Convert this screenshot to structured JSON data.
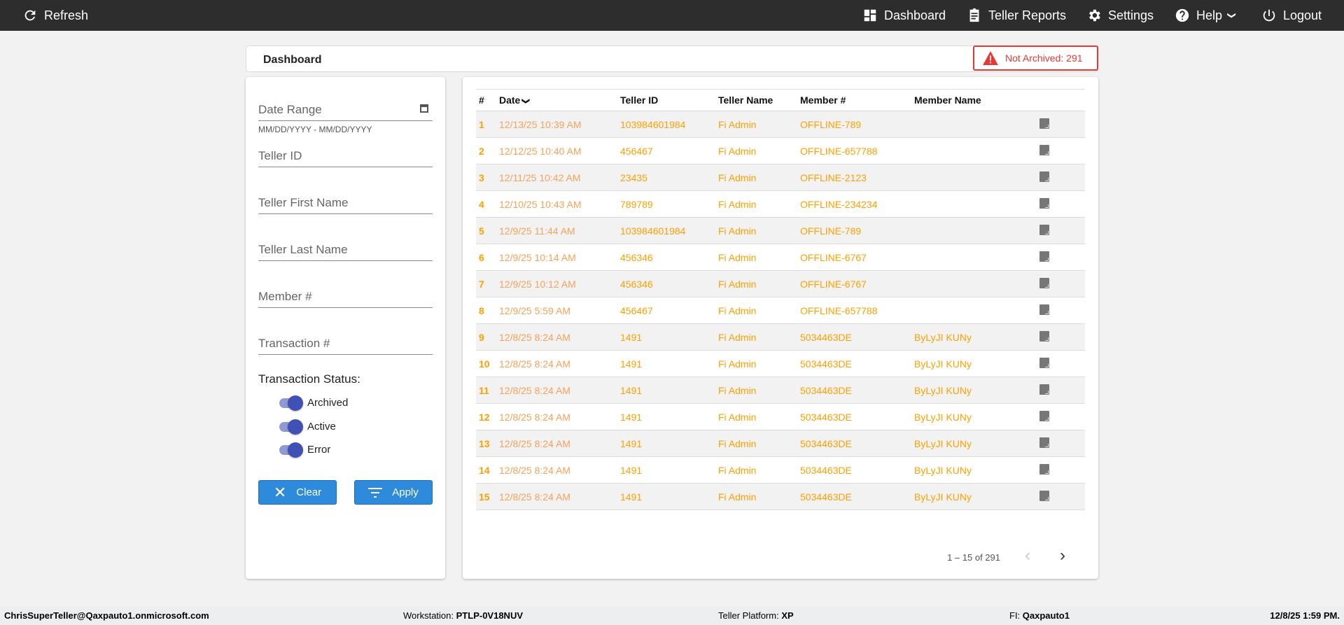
{
  "topbar": {
    "refresh": "Refresh",
    "dashboard": "Dashboard",
    "teller_reports": "Teller Reports",
    "settings": "Settings",
    "help": "Help",
    "logout": "Logout"
  },
  "header": {
    "title": "Dashboard",
    "warning": "Not Archived: 291"
  },
  "filters": {
    "date_range": "Date Range",
    "date_hint": "MM/DD/YYYY - MM/DD/YYYY",
    "teller_id": "Teller ID",
    "teller_first": "Teller First Name",
    "teller_last": "Teller Last Name",
    "member": "Member #",
    "transaction": "Transaction #",
    "status_label": "Transaction Status:",
    "statuses": [
      {
        "label": "Archived",
        "on": true
      },
      {
        "label": "Active",
        "on": true
      },
      {
        "label": "Error",
        "on": true
      }
    ],
    "clear": "Clear",
    "apply": "Apply"
  },
  "table": {
    "columns": [
      "#",
      "Date",
      "Teller ID",
      "Teller Name",
      "Member #",
      "Member Name"
    ],
    "rows": [
      [
        "1",
        "12/13/25 10:39 AM",
        "103984601984",
        "Fi Admin",
        "OFFLINE-789",
        ""
      ],
      [
        "2",
        "12/12/25 10:40 AM",
        "456467",
        "Fi Admin",
        "OFFLINE-657788",
        ""
      ],
      [
        "3",
        "12/11/25 10:42 AM",
        "23435",
        "Fi Admin",
        "OFFLINE-2123",
        ""
      ],
      [
        "4",
        "12/10/25 10:43 AM",
        "789789",
        "Fi Admin",
        "OFFLINE-234234",
        ""
      ],
      [
        "5",
        "12/9/25 11:44 AM",
        "103984601984",
        "Fi Admin",
        "OFFLINE-789",
        ""
      ],
      [
        "6",
        "12/9/25 10:14 AM",
        "456346",
        "Fi Admin",
        "OFFLINE-6767",
        ""
      ],
      [
        "7",
        "12/9/25 10:12 AM",
        "456346",
        "Fi Admin",
        "OFFLINE-6767",
        ""
      ],
      [
        "8",
        "12/9/25 5:59 AM",
        "456467",
        "Fi Admin",
        "OFFLINE-657788",
        ""
      ],
      [
        "9",
        "12/8/25 8:24 AM",
        "1491",
        "Fi Admin",
        "5034463DE",
        "ByLyJI KUNy"
      ],
      [
        "10",
        "12/8/25 8:24 AM",
        "1491",
        "Fi Admin",
        "5034463DE",
        "ByLyJI KUNy"
      ],
      [
        "11",
        "12/8/25 8:24 AM",
        "1491",
        "Fi Admin",
        "5034463DE",
        "ByLyJI KUNy"
      ],
      [
        "12",
        "12/8/25 8:24 AM",
        "1491",
        "Fi Admin",
        "5034463DE",
        "ByLyJI KUNy"
      ],
      [
        "13",
        "12/8/25 8:24 AM",
        "1491",
        "Fi Admin",
        "5034463DE",
        "ByLyJI KUNy"
      ],
      [
        "14",
        "12/8/25 8:24 AM",
        "1491",
        "Fi Admin",
        "5034463DE",
        "ByLyJI KUNy"
      ],
      [
        "15",
        "12/8/25 8:24 AM",
        "1491",
        "Fi Admin",
        "5034463DE",
        "ByLyJI KUNy"
      ]
    ]
  },
  "pagination": {
    "range": "1 – 15 of 291"
  },
  "footer": {
    "user": "ChrisSuperTeller@Qaxpauto1.onmicrosoft.com",
    "workstation_label": "Workstation:",
    "workstation": "PTLP-0V18NUV",
    "platform_label": "Teller Platform:",
    "platform": "XP",
    "fi_label": "FI:",
    "fi": "Qaxpauto1",
    "datetime": "12/8/25 1:59 PM."
  }
}
